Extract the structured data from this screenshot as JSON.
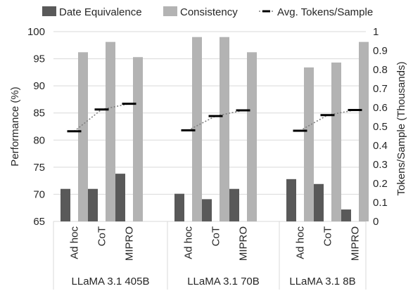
{
  "chart_data": {
    "type": "bar",
    "ylabel_left": "Performance (%)",
    "ylabel_right": "Tokens/Sample (Thousands)",
    "ylim_left": [
      65,
      100
    ],
    "yticks_left": [
      "65",
      "70",
      "75",
      "80",
      "85",
      "90",
      "95",
      "100"
    ],
    "ylim_right": [
      0,
      1
    ],
    "yticks_right": [
      "0",
      "0.1",
      "0.2",
      "0.3",
      "0.4",
      "0.5",
      "0.6",
      "0.7",
      "0.8",
      "0.9",
      "1"
    ],
    "legend": {
      "position": "top",
      "entries": [
        "Date Equivalence",
        "Consistency",
        "Avg. Tokens/Sample"
      ]
    },
    "colors": {
      "date_equivalence": "#595959",
      "consistency": "#b3b3b3",
      "tokens": "#000000",
      "gridline": "#d9d9d9"
    },
    "groups": [
      {
        "name": "LLaMA 3.1 405B",
        "categories": [
          "Ad hoc",
          "CoT",
          "MIPRO"
        ],
        "date_equivalence": [
          71.0,
          71.0,
          73.8
        ],
        "consistency": [
          96.2,
          98.1,
          95.3
        ],
        "avg_tokens": [
          0.475,
          0.59,
          0.62
        ]
      },
      {
        "name": "LLaMA 3.1  70B",
        "categories": [
          "Ad hoc",
          "CoT",
          "MIPRO"
        ],
        "date_equivalence": [
          70.1,
          69.1,
          71.0
        ],
        "consistency": [
          99.0,
          99.0,
          96.2
        ],
        "avg_tokens": [
          0.48,
          0.555,
          0.585
        ]
      },
      {
        "name": "LLaMA 3.1  8B",
        "categories": [
          "Ad hoc",
          "CoT",
          "MIPRO"
        ],
        "date_equivalence": [
          72.8,
          71.9,
          67.2
        ],
        "consistency": [
          93.4,
          94.3,
          98.1
        ],
        "avg_tokens": [
          0.478,
          0.56,
          0.587
        ]
      }
    ]
  }
}
